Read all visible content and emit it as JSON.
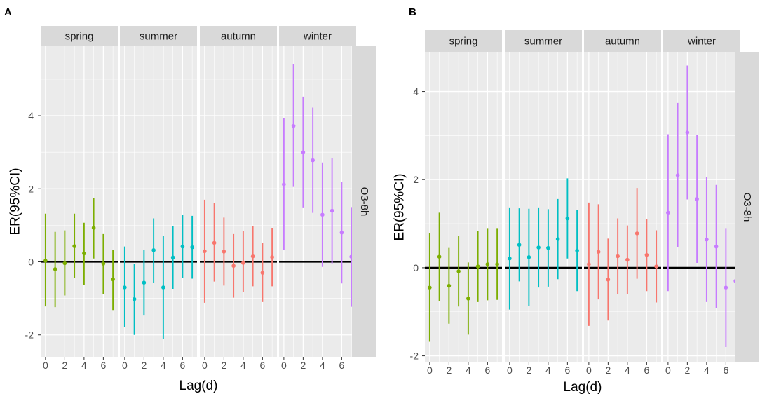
{
  "colors": {
    "spring": "#7CAE00",
    "summer": "#00BFC4",
    "autumn": "#F8766D",
    "winter": "#C77CFF",
    "panel_bg": "#EBEBEB",
    "strip_bg": "#D9D9D9",
    "grid": "#FFFFFF"
  },
  "chart_data": [
    {
      "panel_label": "A",
      "type": "scatter",
      "xlabel": "Lag(d)",
      "ylabel": "ER(95%CI)",
      "right_strip_label": "O3-8h",
      "xlim": [
        -0.5,
        7.5
      ],
      "ylim": [
        -2.6,
        5.9
      ],
      "x_ticks": [
        0,
        2,
        4,
        6
      ],
      "x_tick_labels": [
        "0",
        "2",
        "4",
        "6"
      ],
      "y_ticks": [
        -2,
        0,
        2,
        4
      ],
      "y_tick_labels": [
        "-2",
        "0",
        "2",
        "4"
      ],
      "reference_line": 0,
      "facets": [
        {
          "name": "spring",
          "x": [
            0,
            1,
            2,
            3,
            4,
            5,
            6,
            7
          ],
          "estimate": [
            0.03,
            -0.2,
            -0.04,
            0.43,
            0.23,
            0.93,
            -0.05,
            -0.48
          ],
          "lower": [
            -1.22,
            -1.24,
            -0.92,
            -0.44,
            -0.63,
            0.09,
            -0.88,
            -1.32
          ],
          "upper": [
            1.32,
            0.82,
            0.86,
            1.32,
            1.07,
            1.75,
            0.76,
            0.32
          ]
        },
        {
          "name": "summer",
          "x": [
            0,
            1,
            2,
            3,
            4,
            5,
            6,
            7
          ],
          "estimate": [
            -0.7,
            -1.02,
            -0.57,
            0.32,
            -0.7,
            0.12,
            0.42,
            0.4
          ],
          "lower": [
            -1.79,
            -2.0,
            -1.47,
            -0.57,
            -2.1,
            -0.74,
            -0.44,
            -0.46
          ],
          "upper": [
            0.42,
            -0.05,
            0.32,
            1.19,
            0.7,
            0.97,
            1.28,
            1.26
          ]
        },
        {
          "name": "autumn",
          "x": [
            0,
            1,
            2,
            3,
            4,
            5,
            6,
            7
          ],
          "estimate": [
            0.29,
            0.52,
            0.28,
            -0.11,
            -0.03,
            0.15,
            -0.3,
            0.13
          ],
          "lower": [
            -1.12,
            -0.54,
            -0.65,
            -0.98,
            -0.83,
            -0.67,
            -1.1,
            -0.67
          ],
          "upper": [
            1.7,
            1.61,
            1.21,
            0.76,
            0.85,
            0.97,
            0.52,
            0.93
          ]
        },
        {
          "name": "winter",
          "x": [
            0,
            1,
            2,
            3,
            4,
            5,
            6,
            7
          ],
          "estimate": [
            2.12,
            3.72,
            3.0,
            2.78,
            1.29,
            1.4,
            0.8,
            0.14
          ],
          "lower": [
            0.32,
            2.05,
            1.49,
            1.34,
            -0.14,
            -0.04,
            -0.59,
            -1.23
          ],
          "upper": [
            3.93,
            5.41,
            4.52,
            4.22,
            2.72,
            2.84,
            2.19,
            1.5
          ]
        }
      ]
    },
    {
      "panel_label": "B",
      "type": "scatter",
      "xlabel": "Lag(d)",
      "ylabel": "ER(95%CI)",
      "right_strip_label": "O3-8h",
      "xlim": [
        -0.5,
        7.5
      ],
      "ylim": [
        -2.15,
        4.9
      ],
      "x_ticks": [
        0,
        2,
        4,
        6
      ],
      "x_tick_labels": [
        "0",
        "2",
        "4",
        "6"
      ],
      "y_ticks": [
        -2,
        0,
        2,
        4
      ],
      "y_tick_labels": [
        "-2",
        "0",
        "2",
        "4"
      ],
      "reference_line": 0,
      "facets": [
        {
          "name": "spring",
          "x": [
            0,
            1,
            2,
            3,
            4,
            5,
            6,
            7
          ],
          "estimate": [
            -0.45,
            0.25,
            -0.41,
            -0.08,
            -0.7,
            0.03,
            0.08,
            0.08
          ],
          "lower": [
            -1.68,
            -0.75,
            -1.27,
            -0.88,
            -1.52,
            -0.78,
            -0.74,
            -0.73
          ],
          "upper": [
            0.79,
            1.25,
            0.45,
            0.72,
            0.12,
            0.84,
            0.9,
            0.9
          ]
        },
        {
          "name": "summer",
          "x": [
            0,
            1,
            2,
            3,
            4,
            5,
            6,
            7
          ],
          "estimate": [
            0.21,
            0.52,
            0.24,
            0.46,
            0.45,
            0.65,
            1.12,
            0.39
          ],
          "lower": [
            -0.95,
            -0.31,
            -0.86,
            -0.45,
            -0.43,
            -0.26,
            0.21,
            -0.53
          ],
          "upper": [
            1.37,
            1.35,
            1.34,
            1.37,
            1.33,
            1.56,
            2.03,
            1.31
          ]
        },
        {
          "name": "autumn",
          "x": [
            0,
            1,
            2,
            3,
            4,
            5,
            6,
            7
          ],
          "estimate": [
            0.08,
            0.36,
            -0.27,
            0.26,
            0.18,
            0.78,
            0.29,
            0.03
          ],
          "lower": [
            -1.32,
            -0.72,
            -1.2,
            -0.6,
            -0.6,
            -0.25,
            -0.53,
            -0.79
          ],
          "upper": [
            1.48,
            1.44,
            0.66,
            1.12,
            0.96,
            1.81,
            1.11,
            0.85
          ]
        },
        {
          "name": "winter",
          "x": [
            0,
            1,
            2,
            3,
            4,
            5,
            6,
            7
          ],
          "estimate": [
            1.25,
            2.1,
            3.07,
            1.56,
            0.64,
            0.48,
            -0.45,
            -0.3
          ],
          "lower": [
            -0.53,
            0.46,
            1.55,
            0.11,
            -0.78,
            -0.92,
            -1.8,
            -1.65
          ],
          "upper": [
            3.03,
            3.74,
            4.59,
            3.01,
            2.06,
            1.88,
            0.9,
            1.05
          ]
        }
      ]
    }
  ]
}
